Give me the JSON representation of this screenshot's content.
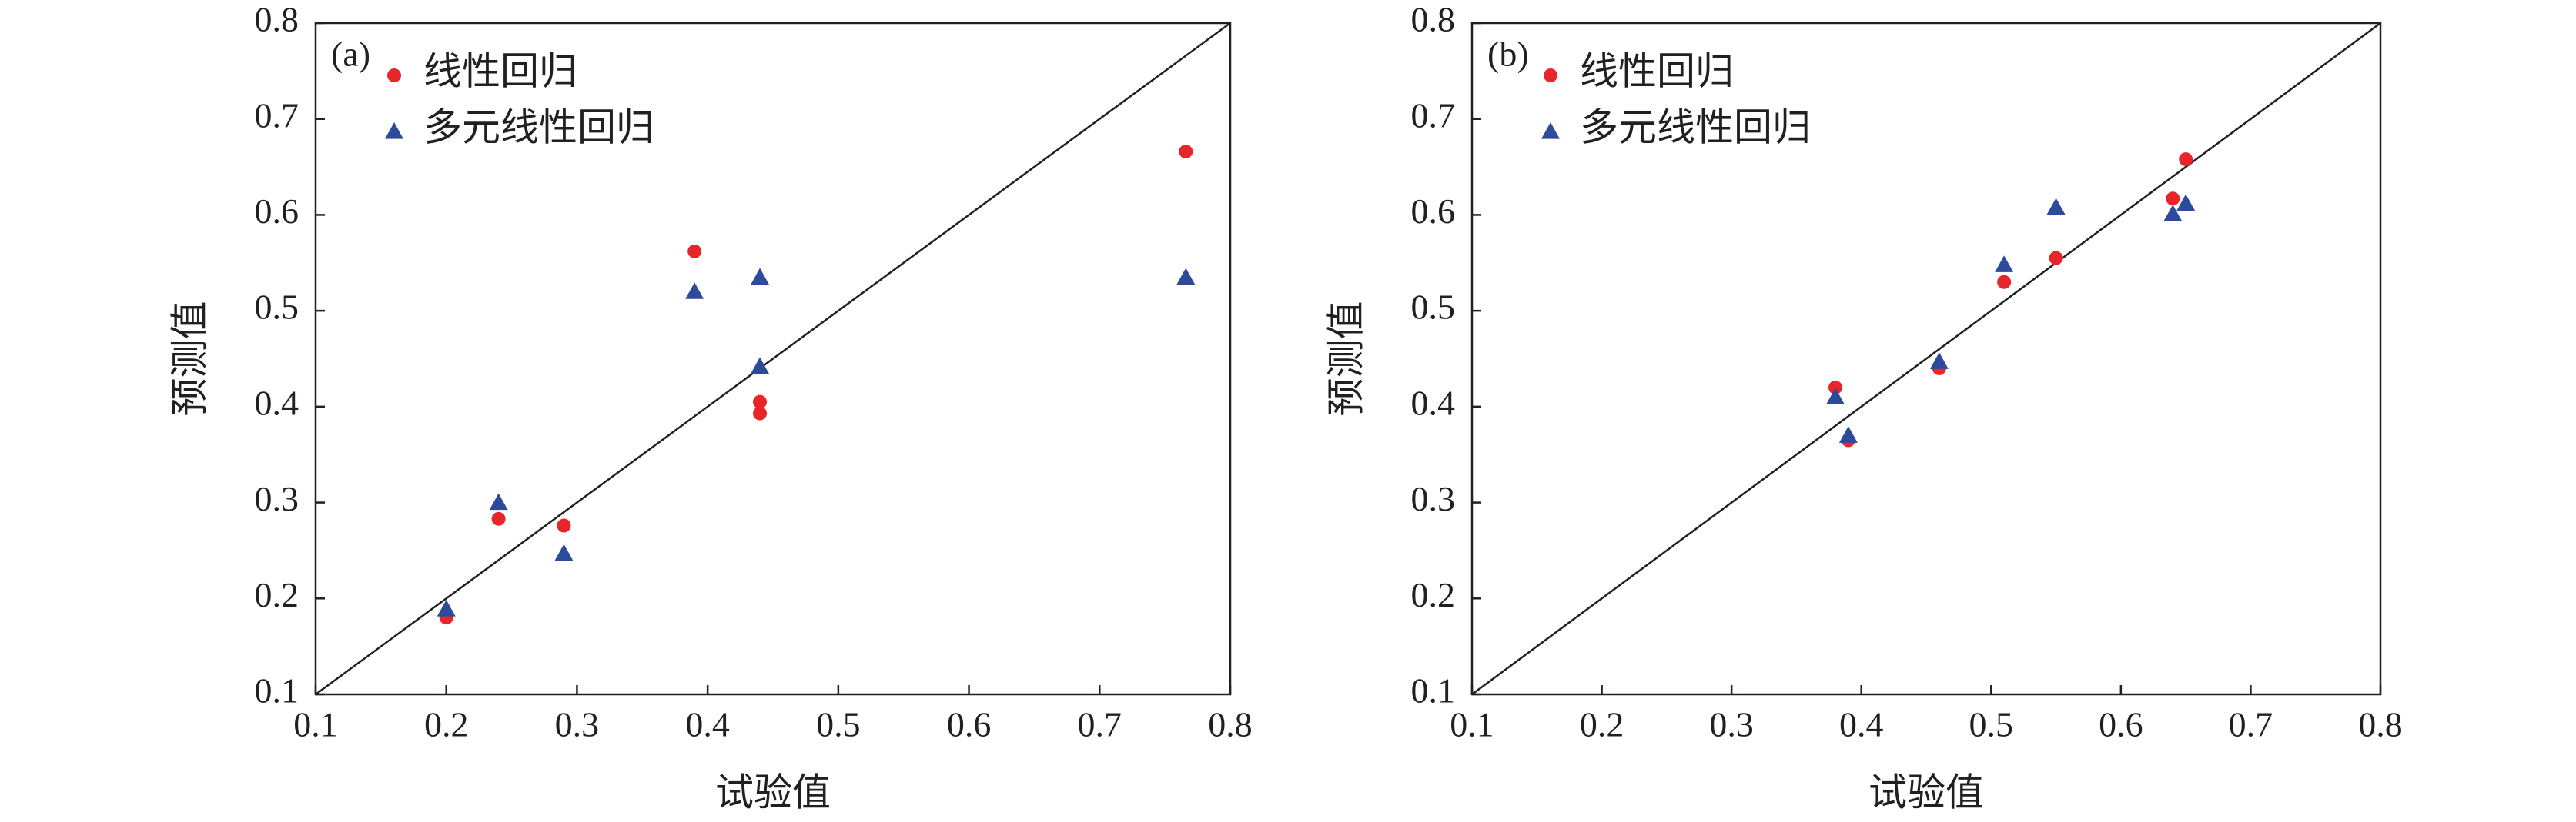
{
  "chart_data": [
    {
      "type": "scatter",
      "panel_label": "(a)",
      "x_label": "试验值",
      "y_label": "预测值",
      "xlim": [
        0.1,
        0.8
      ],
      "ylim": [
        0.1,
        0.8
      ],
      "xticks": [
        0.1,
        0.2,
        0.3,
        0.4,
        0.5,
        0.6,
        0.7,
        0.8
      ],
      "yticks": [
        0.1,
        0.2,
        0.3,
        0.4,
        0.5,
        0.6,
        0.7,
        0.8
      ],
      "diagonal": true,
      "legend": "top-left",
      "series": [
        {
          "name": "线性回归",
          "color": "#e8262a",
          "marker": "circle",
          "x": [
            0.2,
            0.24,
            0.29,
            0.39,
            0.44,
            0.44,
            0.766
          ],
          "values": [
            0.18,
            0.283,
            0.276,
            0.562,
            0.405,
            0.393,
            0.666
          ]
        },
        {
          "name": "多元线性回归",
          "color": "#2e4a9a",
          "marker": "triangle",
          "x": [
            0.2,
            0.24,
            0.29,
            0.39,
            0.44,
            0.44,
            0.766
          ],
          "values": [
            0.189,
            0.3,
            0.247,
            0.52,
            0.535,
            0.442,
            0.535
          ]
        }
      ]
    },
    {
      "type": "scatter",
      "panel_label": "(b)",
      "x_label": "试验值",
      "y_label": "预测值",
      "xlim": [
        0.1,
        0.8
      ],
      "ylim": [
        0.1,
        0.8
      ],
      "xticks": [
        0.1,
        0.2,
        0.3,
        0.4,
        0.5,
        0.6,
        0.7,
        0.8
      ],
      "yticks": [
        0.1,
        0.2,
        0.3,
        0.4,
        0.5,
        0.6,
        0.7,
        0.8
      ],
      "diagonal": true,
      "legend": "top-left",
      "series": [
        {
          "name": "线性回归",
          "color": "#e8262a",
          "marker": "circle",
          "x": [
            0.38,
            0.39,
            0.46,
            0.51,
            0.55,
            0.64,
            0.65
          ],
          "values": [
            0.42,
            0.365,
            0.44,
            0.53,
            0.555,
            0.617,
            0.658
          ]
        },
        {
          "name": "多元线性回归",
          "color": "#2e4a9a",
          "marker": "triangle",
          "x": [
            0.38,
            0.39,
            0.46,
            0.51,
            0.55,
            0.64,
            0.65
          ],
          "values": [
            0.41,
            0.37,
            0.447,
            0.548,
            0.608,
            0.601,
            0.612
          ]
        }
      ]
    }
  ]
}
